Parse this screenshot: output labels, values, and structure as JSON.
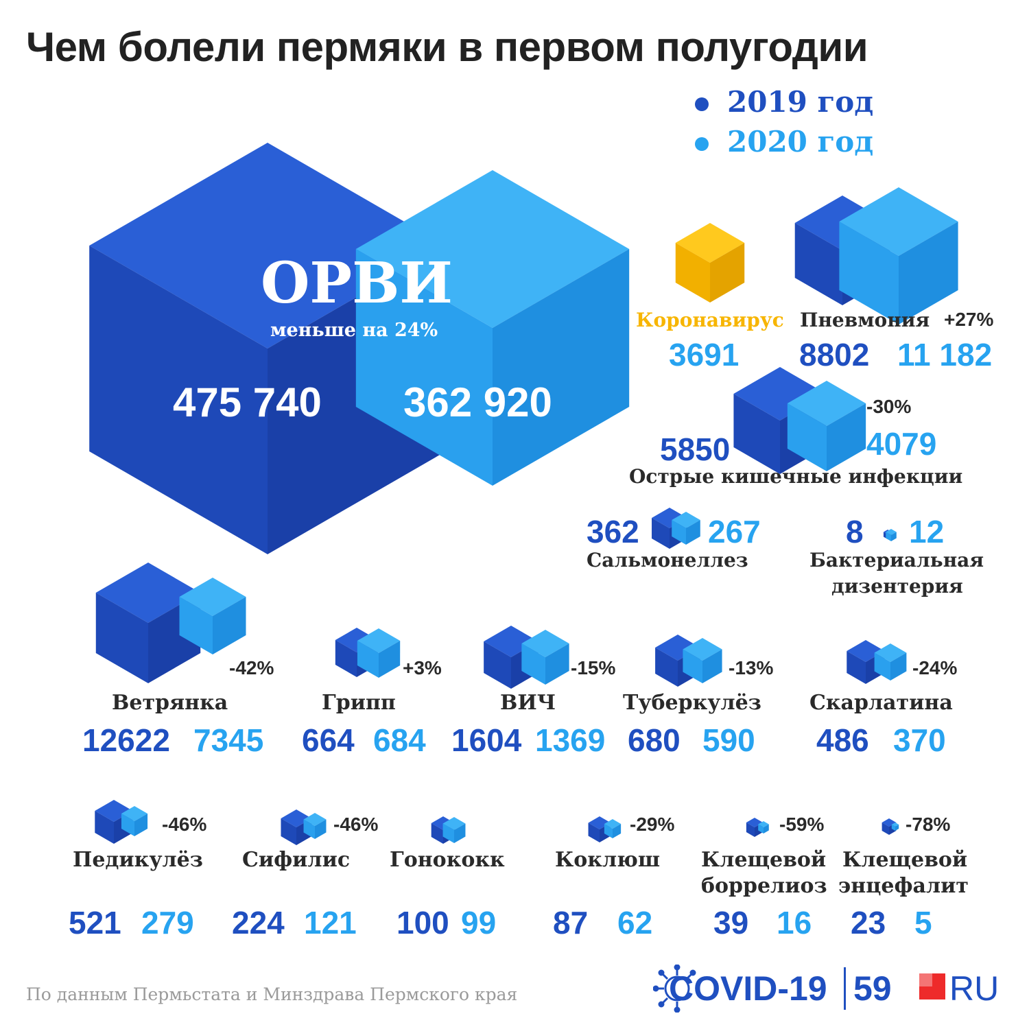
{
  "title": "Чем болели пермяки в первом полугодии",
  "colors": {
    "y2019": "#1f4fc0",
    "y2019_dark": "#163a9a",
    "y2020": "#27a3f0",
    "corona": "#f7b500",
    "text": "#2a2a2a"
  },
  "legend": {
    "y2019": "2019 год",
    "y2020": "2020 год"
  },
  "orvi": {
    "name": "ОРВИ",
    "note": "меньше на 24%",
    "v2019_label": "475 740",
    "v2020_label": "362 920"
  },
  "corona": {
    "name": "Коронавирус",
    "value_label": "3691"
  },
  "pneumonia": {
    "name": "Пневмония",
    "change": "+27%",
    "v2019_label": "8802",
    "v2020_label": "11 182"
  },
  "intestinal": {
    "name": "Острые кишечные инфекции",
    "change": "-30%",
    "v2019_label": "5850",
    "v2020_label": "4079"
  },
  "salmonella": {
    "name": "Сальмонеллез",
    "v2019_label": "362",
    "v2020_label": "267"
  },
  "dysentery": {
    "name_line1": "Бактериальная",
    "name_line2": "дизентерия",
    "v2019_label": "8",
    "v2020_label": "12"
  },
  "row1": [
    {
      "name": "Ветрянка",
      "change": "-42%",
      "v2019": "12622",
      "v2020": "7345"
    },
    {
      "name": "Грипп",
      "change": "+3%",
      "v2019": "664",
      "v2020": "684"
    },
    {
      "name": "ВИЧ",
      "change": "-15%",
      "v2019": "1604",
      "v2020": "1369"
    },
    {
      "name": "Туберкулёз",
      "change": "-13%",
      "v2019": "680",
      "v2020": "590"
    },
    {
      "name": "Скарлатина",
      "change": "-24%",
      "v2019": "486",
      "v2020": "370"
    }
  ],
  "row2": [
    {
      "name": "Педикулёз",
      "change": "-46%",
      "v2019": "521",
      "v2020": "279"
    },
    {
      "name": "Сифилис",
      "change": "-46%",
      "v2019": "224",
      "v2020": "121"
    },
    {
      "name": "Гонококк",
      "change": "",
      "v2019": "100",
      "v2020": "99"
    },
    {
      "name": "Коклюш",
      "change": "-29%",
      "v2019": "87",
      "v2020": "62"
    },
    {
      "name": "Клещевой боррелиоз",
      "name_line1": "Клещевой",
      "name_line2": "боррелиоз",
      "change": "-59%",
      "v2019": "39",
      "v2020": "16"
    },
    {
      "name": "Клещевой энцефалит",
      "name_line1": "Клещевой",
      "name_line2": "энцефалит",
      "change": "-78%",
      "v2019": "23",
      "v2020": "5"
    }
  ],
  "chart_data": {
    "type": "bar",
    "title": "Чем болели пермяки в первом полугодии",
    "legend_position": "top-right",
    "categories": [
      "ОРВИ",
      "Коронавирус",
      "Пневмония",
      "Острые кишечные инфекции",
      "Сальмонеллез",
      "Бактериальная дизентерия",
      "Ветрянка",
      "Грипп",
      "ВИЧ",
      "Туберкулёз",
      "Скарлатина",
      "Педикулёз",
      "Сифилис",
      "Гонококк",
      "Коклюш",
      "Клещевой боррелиоз",
      "Клещевой энцефалит"
    ],
    "series": [
      {
        "name": "2019 год",
        "values": [
          475740,
          null,
          8802,
          5850,
          362,
          8,
          12622,
          664,
          1604,
          680,
          486,
          521,
          224,
          100,
          87,
          39,
          23
        ]
      },
      {
        "name": "2020 год",
        "values": [
          362920,
          3691,
          11182,
          4079,
          267,
          12,
          7345,
          684,
          1369,
          590,
          370,
          279,
          121,
          99,
          62,
          16,
          5
        ]
      }
    ],
    "changes": [
      "меньше на 24%",
      "",
      "+27%",
      "-30%",
      "",
      "",
      "-42%",
      "+3%",
      "-15%",
      "-13%",
      "-24%",
      "-46%",
      "-46%",
      "",
      "-29%",
      "-59%",
      "-78%"
    ]
  },
  "source": "По данным Пермьстата и Минздрава Пермского края",
  "logo": {
    "covid": "COVID-19",
    "num": "59",
    "ru": "RU"
  }
}
